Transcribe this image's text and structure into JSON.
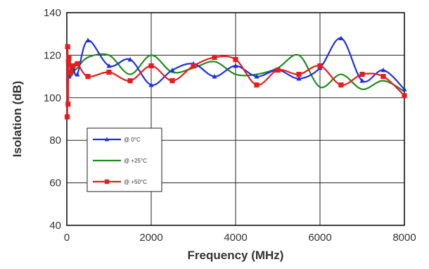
{
  "chart_data": {
    "type": "line",
    "xlabel": "Frequency (MHz)",
    "ylabel": "Isolation (dB)",
    "xlim": [
      0,
      8000
    ],
    "ylim": [
      40,
      140
    ],
    "x_ticks": [
      0,
      2000,
      4000,
      6000,
      8000
    ],
    "y_ticks": [
      40,
      60,
      80,
      100,
      120,
      140
    ],
    "grid": true,
    "legend_position": "middle-left",
    "series": [
      {
        "name": "@ 0°C",
        "color": "#1f2fe0",
        "marker": "triangle",
        "x": [
          10,
          30,
          50,
          100,
          150,
          250,
          500,
          1000,
          1500,
          2000,
          2500,
          3000,
          3500,
          4000,
          4500,
          5000,
          5500,
          6000,
          6500,
          7000,
          7500,
          8000
        ],
        "y": [
          92,
          118,
          110,
          113,
          114,
          111,
          127,
          115,
          118,
          106,
          113,
          116,
          110,
          115,
          110,
          113,
          109,
          114,
          128,
          108,
          113,
          104
        ]
      },
      {
        "name": "@ +25°C",
        "color": "#1e8c1e",
        "marker": "none",
        "x": [
          10,
          30,
          50,
          100,
          150,
          250,
          500,
          1000,
          1500,
          2000,
          2500,
          3000,
          3500,
          4000,
          4500,
          5000,
          5500,
          6000,
          6500,
          7000,
          7500,
          8000
        ],
        "y": [
          100,
          115,
          112,
          110,
          112,
          114,
          119,
          120,
          111,
          120,
          112,
          114,
          117,
          111,
          111,
          114,
          120,
          105,
          111,
          104,
          108,
          103
        ]
      },
      {
        "name": "@ +50°C",
        "color": "#e81c1c",
        "marker": "square",
        "x": [
          10,
          20,
          30,
          40,
          50,
          100,
          150,
          250,
          500,
          1000,
          1500,
          2000,
          2500,
          3000,
          3500,
          4000,
          4500,
          5000,
          5500,
          6000,
          6500,
          7000,
          7500,
          8000
        ],
        "y": [
          91,
          124,
          97,
          117,
          119,
          112,
          115,
          116,
          110,
          112,
          108,
          115,
          108,
          115,
          119,
          118,
          106,
          113,
          111,
          115,
          106,
          111,
          110,
          101
        ]
      }
    ]
  }
}
